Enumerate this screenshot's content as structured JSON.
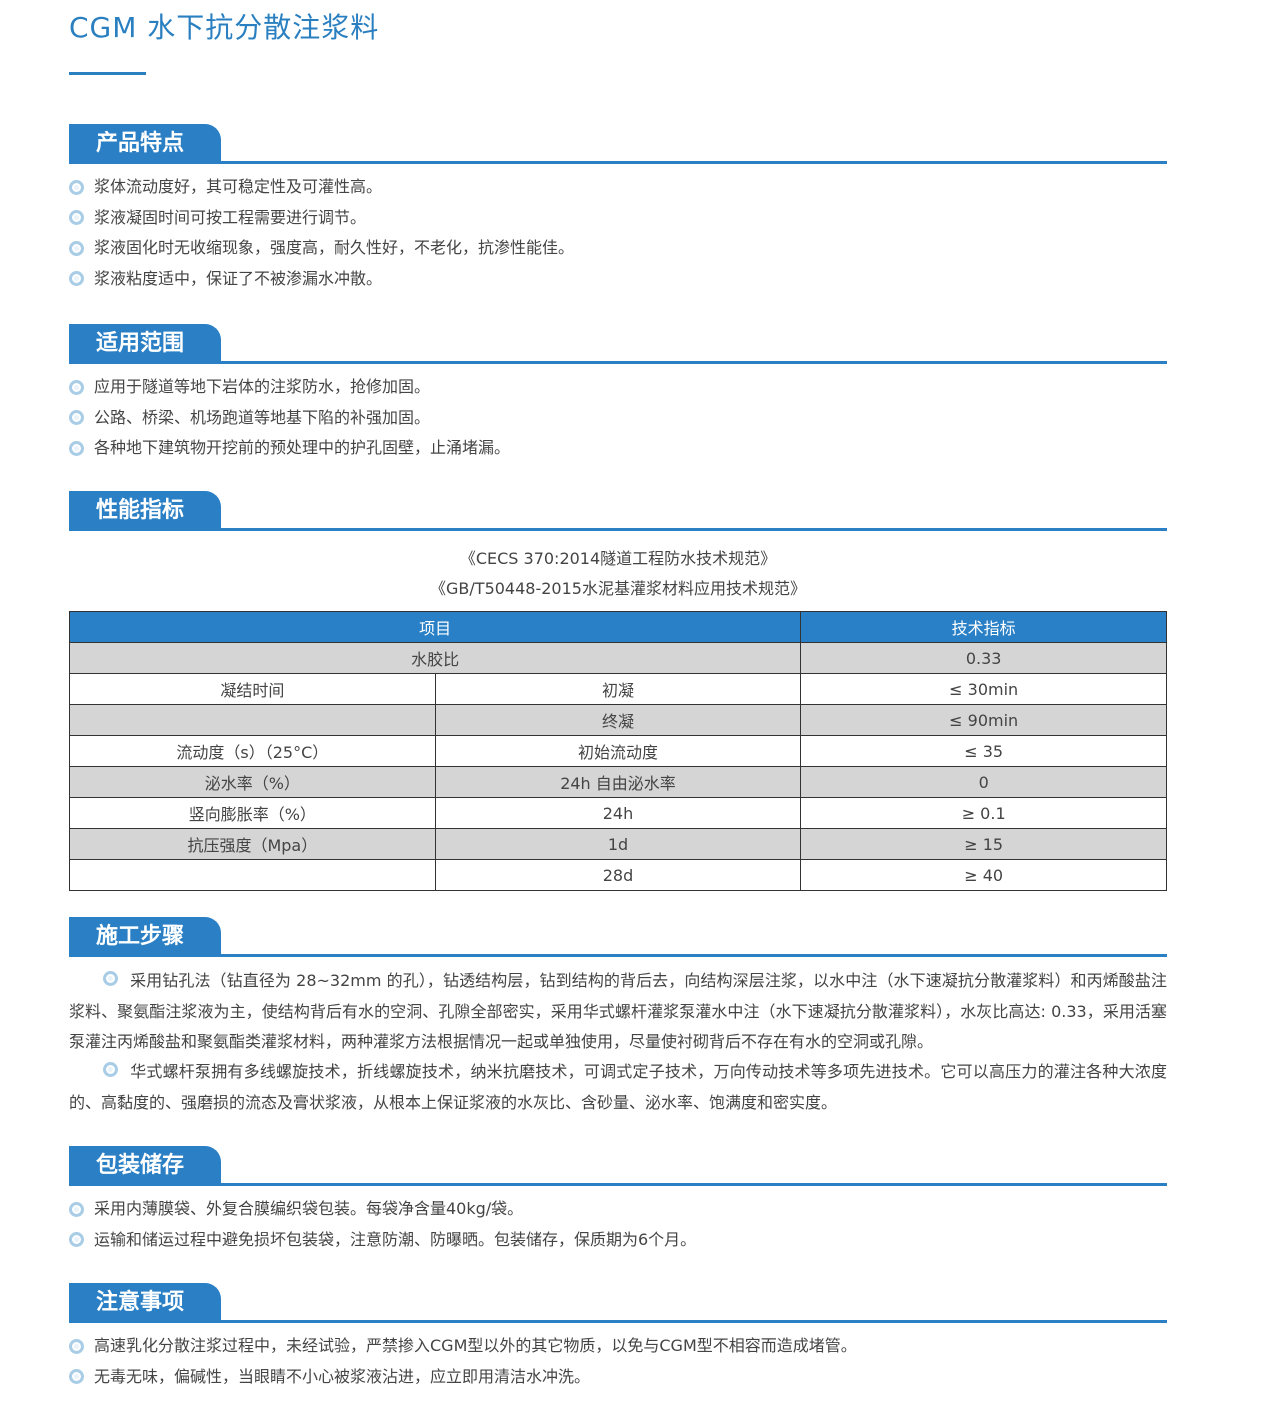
{
  "title": "CGM 水下抗分散注浆料",
  "sections": {
    "features": {
      "heading": "产品特点",
      "items": [
        "浆体流动度好，其可稳定性及可灌性高。",
        "浆液凝固时间可按工程需要进行调节。",
        "浆液固化时无收缩现象，强度高，耐久性好，不老化，抗渗性能佳。",
        "浆液粘度适中，保证了不被渗漏水冲散。"
      ]
    },
    "scope": {
      "heading": "适用范围",
      "items": [
        "应用于隧道等地下岩体的注浆防水，抢修加固。",
        "公路、桥梁、机场跑道等地基下陷的补强加固。",
        "各种地下建筑物开挖前的预处理中的护孔固壁，止涌堵漏。"
      ]
    },
    "performance": {
      "heading": "性能指标",
      "standards": [
        "《CECS 370:2014隧道工程防水技术规范》",
        "《GB/T50448-2015水泥基灌浆材料应用技术规范》"
      ],
      "table": {
        "headers": [
          "项目",
          "技术指标"
        ],
        "rows": [
          [
            "水胶比",
            "",
            "0.33"
          ],
          [
            "凝结时间",
            "初凝",
            "≤ 30min"
          ],
          [
            "",
            "终凝",
            "≤ 90min"
          ],
          [
            "流动度（s）（25°C）",
            "初始流动度",
            "≤ 35"
          ],
          [
            "泌水率（%）",
            "24h 自由泌水率",
            "0"
          ],
          [
            "竖向膨胀率（%）",
            "24h",
            "≥ 0.1"
          ],
          [
            "抗压强度（Mpa）",
            "1d",
            "≥ 15"
          ],
          [
            "",
            "28d",
            "≥ 40"
          ]
        ]
      }
    },
    "construction": {
      "heading": "施工步骤",
      "paragraphs": [
        "采用钻孔法（钻直径为 28~32mm 的孔），钻透结构层，钻到结构的背后去，向结构深层注浆，以水中注（水下速凝抗分散灌浆料）和丙烯酸盐注浆料、聚氨酯注浆液为主，使结构背后有水的空洞、孔隙全部密实，采用华式螺杆灌浆泵灌水中注（水下速凝抗分散灌浆料），水灰比高达: 0.33，采用活塞泵灌注丙烯酸盐和聚氨酯类灌浆材料，两种灌浆方法根据情况一起或单独使用，尽量使衬砌背后不存在有水的空洞或孔隙。",
        "华式螺杆泵拥有多线螺旋技术，折线螺旋技术，纳米抗磨技术，可调式定子技术，万向传动技术等多项先进技术。它可以高压力的灌注各种大浓度的、高黏度的、强磨损的流态及膏状浆液，从根本上保证浆液的水灰比、含砂量、泌水率、饱满度和密实度。"
      ]
    },
    "packaging": {
      "heading": "包装储存",
      "items": [
        "采用内薄膜袋、外复合膜编织袋包装。每袋净含量40kg/袋。",
        "运输和储运过程中避免损坏包装袋，注意防潮、防曝晒。包装储存，保质期为6个月。"
      ]
    },
    "notes": {
      "heading": "注意事项",
      "items": [
        "高速乳化分散注浆过程中，未经试验，严禁掺入CGM型以外的其它物质，以免与CGM型不相容而造成堵管。",
        "无毒无味，偏碱性，当眼睛不小心被浆液沾进，应立即用清洁水冲洗。"
      ]
    }
  },
  "colors": {
    "accent": "#2a7fc5",
    "table_header": "#2a80c6",
    "row_gray": "#d5d5d5",
    "bullet": "#a9cde6"
  },
  "icons": {
    "bullet": "double-circle-icon"
  }
}
